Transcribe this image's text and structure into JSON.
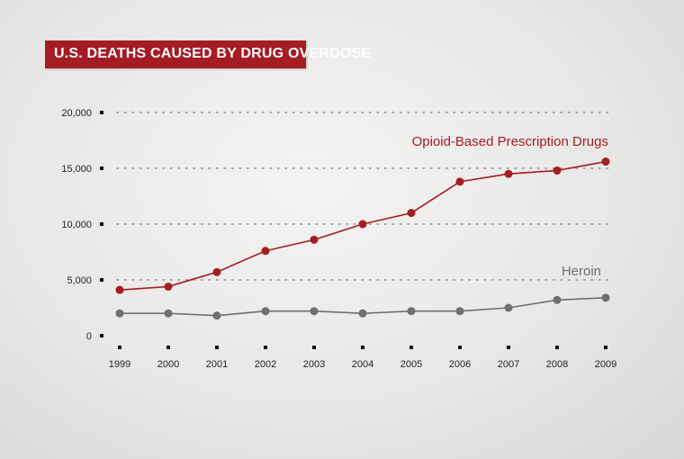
{
  "title": "U.S. DEATHS CAUSED BY DRUG OVERDOSE",
  "colors": {
    "opioid": "#a51c24",
    "heroin": "#707070",
    "title_bg": "#a51c24",
    "grid": "#8a8a8a"
  },
  "chart_data": {
    "type": "line",
    "title": "U.S. DEATHS CAUSED BY DRUG OVERDOSE",
    "x": [
      "1999",
      "2000",
      "2001",
      "2002",
      "2003",
      "2004",
      "2005",
      "2006",
      "2007",
      "2008",
      "2009"
    ],
    "y_ticks": [
      "20,000",
      "15,000",
      "10,000",
      "5,000",
      "0"
    ],
    "y_tick_values": [
      20000,
      15000,
      10000,
      5000,
      0
    ],
    "ylim": [
      0,
      20000
    ],
    "grid": "horizontal dotted",
    "series": [
      {
        "name": "Opioid-Based Prescription Drugs",
        "color": "#a51c24",
        "values": [
          4100,
          4400,
          5700,
          7600,
          8600,
          10000,
          11000,
          13800,
          14500,
          14800,
          15600
        ]
      },
      {
        "name": "Heroin",
        "color": "#707070",
        "values": [
          2000,
          2000,
          1800,
          2200,
          2200,
          2000,
          2200,
          2200,
          2500,
          3200,
          3400
        ]
      }
    ]
  }
}
